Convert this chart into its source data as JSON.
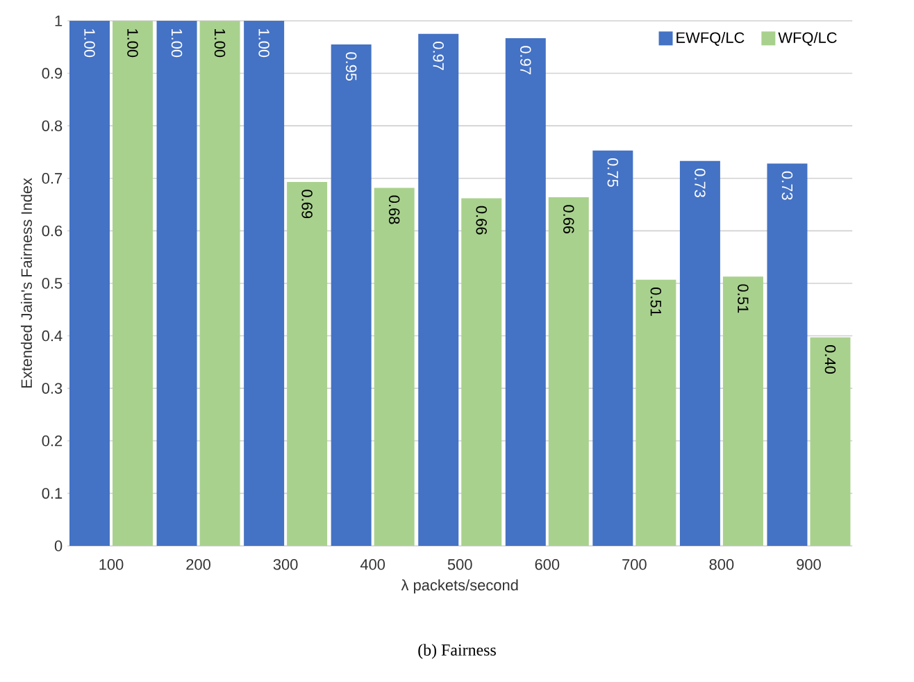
{
  "chart_data": {
    "type": "bar",
    "xlabel": "λ packets/second",
    "ylabel": "Extended Jain's Fairness Index",
    "categories": [
      "100",
      "200",
      "300",
      "400",
      "500",
      "600",
      "700",
      "800",
      "900"
    ],
    "series": [
      {
        "name": "EWFQ/LC",
        "color": "#4472c4",
        "values": [
          1.0,
          1.0,
          1.0,
          0.955,
          0.975,
          0.967,
          0.753,
          0.733,
          0.728
        ],
        "value_labels": [
          "1.00",
          "1.00",
          "1.00",
          "0.95",
          "0.97",
          "0.97",
          "0.75",
          "0.73",
          "0.73"
        ]
      },
      {
        "name": "WFQ/LC",
        "color": "#a9d18e",
        "values": [
          1.0,
          1.0,
          0.693,
          0.682,
          0.662,
          0.664,
          0.507,
          0.513,
          0.397
        ],
        "value_labels": [
          "1.00",
          "1.00",
          "0.69",
          "0.68",
          "0.66",
          "0.66",
          "0.51",
          "0.51",
          "0.40"
        ]
      }
    ],
    "ylim": [
      0,
      1
    ],
    "yticks": [
      0,
      0.1,
      0.2,
      0.3,
      0.4,
      0.5,
      0.6,
      0.7,
      0.8,
      0.9,
      1
    ],
    "grid": "y",
    "legend": "top right",
    "annotations": [
      "(b) Fairness"
    ]
  }
}
